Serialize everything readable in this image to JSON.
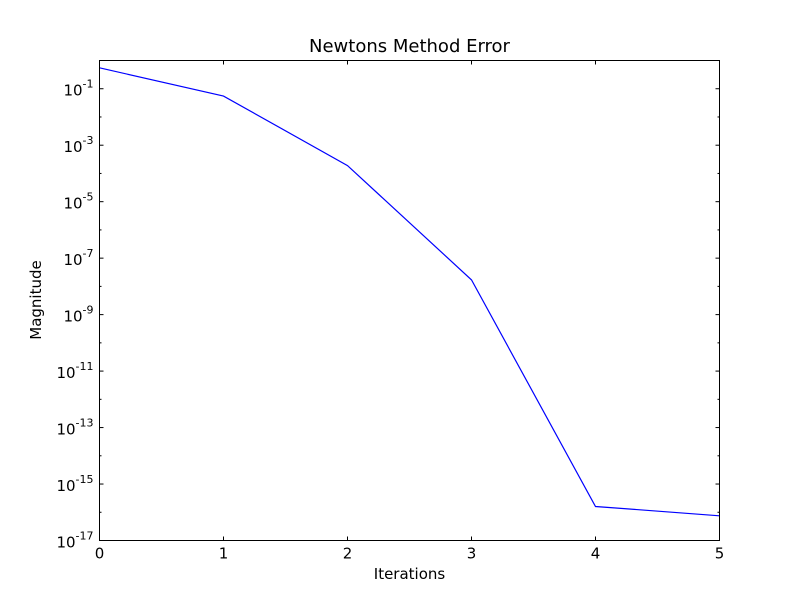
{
  "chart_data": {
    "type": "line",
    "title": "Newtons Method Error",
    "xlabel": "Iterations",
    "ylabel": "Magnitude",
    "xscale": "linear",
    "yscale": "log",
    "xlim": [
      0,
      5
    ],
    "ylim": [
      1e-17,
      1
    ],
    "xticks": [
      0,
      1,
      2,
      3,
      4,
      5
    ],
    "xtick_labels": [
      "0",
      "1",
      "2",
      "3",
      "4",
      "5"
    ],
    "yticks": [
      0.1,
      0.001,
      1e-05,
      1e-07,
      1e-09,
      1e-11,
      1e-13,
      1e-15,
      1e-17
    ],
    "ytick_labels": [
      {
        "base": "10",
        "exp": "-1"
      },
      {
        "base": "10",
        "exp": "-3"
      },
      {
        "base": "10",
        "exp": "-5"
      },
      {
        "base": "10",
        "exp": "-7"
      },
      {
        "base": "10",
        "exp": "-9"
      },
      {
        "base": "10",
        "exp": "-11"
      },
      {
        "base": "10",
        "exp": "-13"
      },
      {
        "base": "10",
        "exp": "-15"
      },
      {
        "base": "10",
        "exp": "-17"
      }
    ],
    "grid": false,
    "series": [
      {
        "color": "#0000ff",
        "x": [
          0,
          1,
          2,
          3,
          4,
          5
        ],
        "y": [
          0.55,
          0.055,
          0.00019,
          1.7e-08,
          1.6e-16,
          7.5e-17
        ]
      }
    ]
  }
}
